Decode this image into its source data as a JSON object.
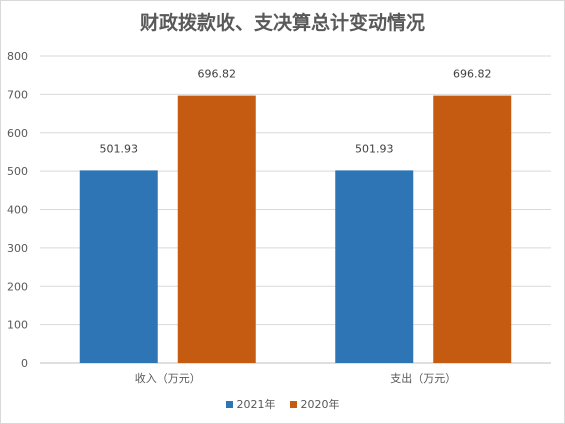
{
  "chart_data": {
    "type": "bar",
    "title": "财政拨款收、支决算总计变动情况",
    "categories": [
      "收入（万元）",
      "支出（万元）"
    ],
    "series": [
      {
        "name": "2021年",
        "values": [
          501.93,
          501.93
        ],
        "color": "#2e75b6"
      },
      {
        "name": "2020年",
        "values": [
          696.82,
          696.82
        ],
        "color": "#c55a11"
      }
    ],
    "data_labels": [
      [
        "501.93",
        "501.93"
      ],
      [
        "696.82",
        "696.82"
      ]
    ],
    "ylim": [
      0,
      800
    ],
    "yticks": [
      "0",
      "100",
      "200",
      "300",
      "400",
      "500",
      "600",
      "700",
      "800"
    ],
    "grid": true,
    "legend_position": "bottom"
  }
}
